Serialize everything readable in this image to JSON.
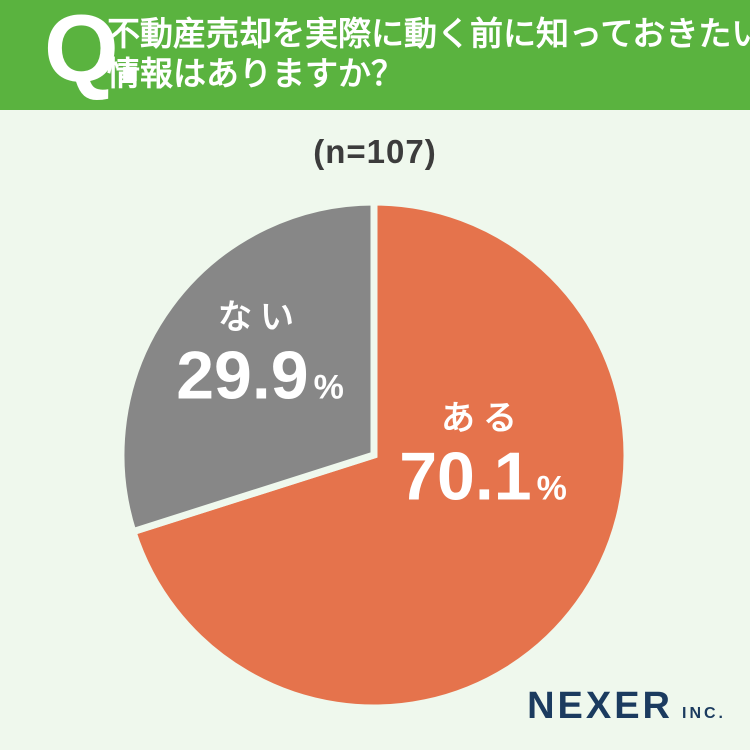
{
  "header": {
    "q_label": "Q.",
    "question_line1": "不動産売却を実際に動く前に知っておきたい",
    "question_line2": "情報はありますか？",
    "bg_color": "#5ab33f",
    "text_color": "#ffffff"
  },
  "sample_label": "(n=107)",
  "chart_data": {
    "type": "pie",
    "title": "(n=107)",
    "categories": [
      "ある",
      "ない"
    ],
    "values": [
      70.1,
      29.9
    ],
    "unit": "%",
    "colors": [
      "#e5734c",
      "#878787"
    ],
    "start_angle": "top",
    "direction": "clockwise",
    "gap_stroke_width": 7,
    "labels": [
      {
        "name": "ある",
        "value": "70.1",
        "unit": "%"
      },
      {
        "name": "ない",
        "value": "29.9",
        "unit": "%"
      }
    ]
  },
  "footer": {
    "brand": "NEXER",
    "brand_suffix": "INC.",
    "color": "#1b3b5f"
  },
  "colors": {
    "background": "#eff8ed",
    "header_green": "#5ab33f",
    "slice_aru_orange": "#e5734c",
    "slice_nai_gray": "#878787",
    "sample_text": "#3c3c3c",
    "brand_navy": "#1b3b5f"
  }
}
